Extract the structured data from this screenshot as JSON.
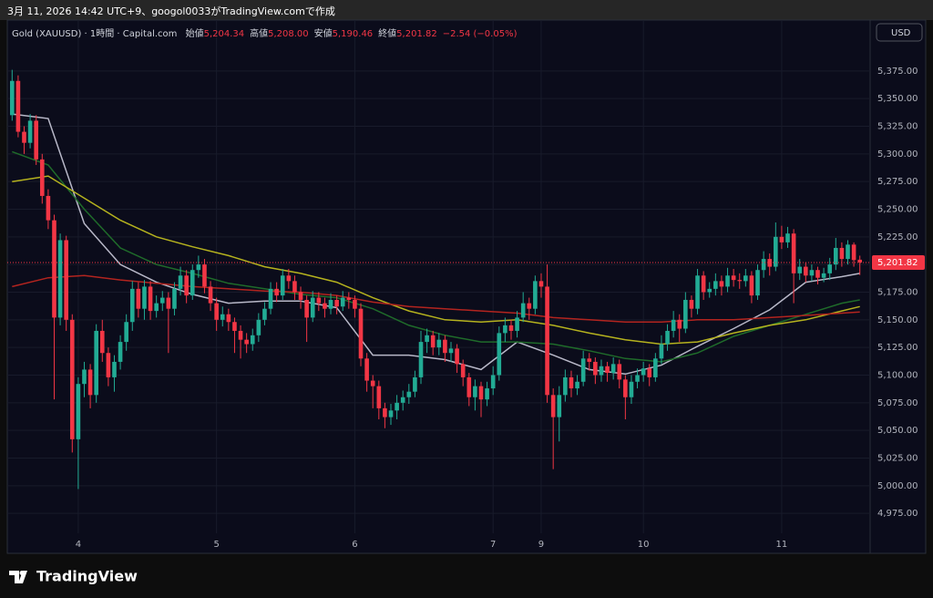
{
  "header": {
    "created": "3月 11, 2026 14:42 UTC+9、googol0033がTradingView.comで作成",
    "symbol": "Gold (XAUUSD) · 1時間 · Capital.com",
    "ohlc": [
      {
        "name": "始値",
        "value": "5,204.34"
      },
      {
        "name": "高値",
        "value": "5,208.00"
      },
      {
        "name": "安値",
        "value": "5,190.46"
      },
      {
        "name": "終値",
        "value": "5,201.82"
      }
    ],
    "change": "−2.54 (−0.05%)",
    "currency": "USD"
  },
  "footer": {
    "brand": "TradingView"
  },
  "chart_data": {
    "type": "candlestick",
    "categories": [
      null,
      null,
      null,
      null,
      null,
      null,
      null,
      null,
      null,
      null,
      null,
      "4",
      null,
      null,
      null,
      null,
      null,
      null,
      null,
      null,
      null,
      null,
      null,
      null,
      null,
      null,
      null,
      null,
      null,
      null,
      null,
      null,
      null,
      null,
      "5",
      null,
      null,
      null,
      null,
      null,
      null,
      null,
      null,
      null,
      null,
      null,
      null,
      null,
      null,
      null,
      null,
      null,
      null,
      null,
      null,
      null,
      null,
      "6",
      null,
      null,
      null,
      null,
      null,
      null,
      null,
      null,
      null,
      null,
      null,
      null,
      null,
      null,
      null,
      null,
      null,
      null,
      null,
      null,
      null,
      null,
      "7",
      null,
      null,
      null,
      null,
      null,
      null,
      null,
      "9",
      null,
      null,
      null,
      null,
      null,
      null,
      null,
      null,
      null,
      null,
      null,
      null,
      null,
      null,
      null,
      null,
      "10",
      null,
      null,
      null,
      null,
      null,
      null,
      null,
      null,
      null,
      null,
      null,
      null,
      null,
      null,
      null,
      null,
      null,
      null,
      null,
      null,
      null,
      null,
      "11",
      null,
      null,
      null,
      null,
      null,
      null,
      null,
      null,
      null,
      null,
      null,
      null,
      null
    ],
    "open": [
      5335,
      5366,
      5320,
      5310,
      5330,
      5295,
      5262,
      5240,
      5152,
      5222,
      5150,
      5042,
      5092,
      5105,
      5082,
      5140,
      5120,
      5098,
      5112,
      5130,
      5148,
      5178,
      5160,
      5180,
      5158,
      5165,
      5170,
      5160,
      5178,
      5190,
      5172,
      5195,
      5200,
      5180,
      5165,
      5150,
      5155,
      5148,
      5140,
      5132,
      5128,
      5136,
      5150,
      5160,
      5178,
      5172,
      5190,
      5185,
      5175,
      5168,
      5152,
      5170,
      5165,
      5160,
      5168,
      5162,
      5170,
      5168,
      5160,
      5115,
      5095,
      5090,
      5070,
      5062,
      5068,
      5075,
      5080,
      5085,
      5098,
      5130,
      5136,
      5125,
      5132,
      5120,
      5124,
      5110,
      5098,
      5080,
      5090,
      5078,
      5088,
      5100,
      5138,
      5145,
      5140,
      5152,
      5165,
      5160,
      5185,
      5180,
      5082,
      5062,
      5082,
      5098,
      5088,
      5094,
      5115,
      5112,
      5100,
      5108,
      5102,
      5110,
      5096,
      5080,
      5094,
      5100,
      5106,
      5098,
      5115,
      5128,
      5140,
      5150,
      5142,
      5168,
      5160,
      5190,
      5175,
      5178,
      5185,
      5180,
      5190,
      5186,
      5185,
      5190,
      5172,
      5195,
      5205,
      5198,
      5225,
      5220,
      5228,
      5192,
      5198,
      5190,
      5195,
      5188,
      5192,
      5200,
      5215,
      5205,
      5218,
      5204.34
    ],
    "high": [
      5376,
      5371,
      5325,
      5336,
      5335,
      5300,
      5268,
      5245,
      5228,
      5226,
      5155,
      5098,
      5112,
      5110,
      5146,
      5150,
      5125,
      5118,
      5136,
      5155,
      5185,
      5184,
      5186,
      5185,
      5172,
      5176,
      5175,
      5184,
      5198,
      5195,
      5200,
      5208,
      5205,
      5185,
      5170,
      5162,
      5160,
      5152,
      5145,
      5138,
      5142,
      5156,
      5166,
      5184,
      5184,
      5196,
      5196,
      5190,
      5180,
      5172,
      5176,
      5175,
      5170,
      5174,
      5172,
      5176,
      5175,
      5172,
      5165,
      5120,
      5100,
      5095,
      5075,
      5074,
      5082,
      5086,
      5092,
      5104,
      5140,
      5142,
      5140,
      5138,
      5136,
      5130,
      5128,
      5114,
      5102,
      5096,
      5094,
      5094,
      5108,
      5144,
      5152,
      5150,
      5158,
      5175,
      5170,
      5190,
      5192,
      5200,
      5088,
      5090,
      5105,
      5104,
      5100,
      5122,
      5120,
      5116,
      5114,
      5112,
      5116,
      5114,
      5100,
      5100,
      5106,
      5112,
      5110,
      5120,
      5136,
      5146,
      5158,
      5155,
      5175,
      5172,
      5196,
      5194,
      5184,
      5192,
      5190,
      5197,
      5196,
      5192,
      5196,
      5194,
      5200,
      5212,
      5210,
      5238,
      5235,
      5234,
      5232,
      5205,
      5202,
      5200,
      5198,
      5197,
      5206,
      5224,
      5220,
      5222,
      5220,
      5208
    ],
    "low": [
      5330,
      5315,
      5300,
      5305,
      5290,
      5255,
      5232,
      5078,
      5145,
      5140,
      5030,
      4997,
      5080,
      5070,
      5075,
      5112,
      5090,
      5085,
      5105,
      5122,
      5140,
      5152,
      5150,
      5150,
      5152,
      5158,
      5120,
      5154,
      5172,
      5165,
      5168,
      5188,
      5174,
      5158,
      5140,
      5144,
      5140,
      5120,
      5115,
      5120,
      5122,
      5130,
      5145,
      5155,
      5166,
      5168,
      5178,
      5168,
      5160,
      5130,
      5148,
      5158,
      5152,
      5155,
      5155,
      5158,
      5160,
      5152,
      5108,
      5085,
      5070,
      5060,
      5052,
      5055,
      5060,
      5068,
      5074,
      5080,
      5092,
      5120,
      5118,
      5118,
      5112,
      5112,
      5102,
      5090,
      5072,
      5068,
      5062,
      5072,
      5082,
      5095,
      5130,
      5132,
      5134,
      5148,
      5150,
      5155,
      5170,
      5075,
      5015,
      5040,
      5076,
      5080,
      5082,
      5090,
      5104,
      5092,
      5094,
      5094,
      5096,
      5088,
      5060,
      5074,
      5088,
      5094,
      5090,
      5094,
      5110,
      5122,
      5134,
      5130,
      5138,
      5152,
      5155,
      5168,
      5170,
      5172,
      5172,
      5175,
      5180,
      5178,
      5180,
      5165,
      5168,
      5188,
      5190,
      5194,
      5214,
      5215,
      5165,
      5186,
      5184,
      5185,
      5182,
      5184,
      5186,
      5195,
      5198,
      5200,
      5198,
      5190.46
    ],
    "close": [
      5366,
      5320,
      5310,
      5330,
      5295,
      5262,
      5240,
      5152,
      5222,
      5150,
      5042,
      5092,
      5105,
      5082,
      5140,
      5120,
      5098,
      5112,
      5130,
      5148,
      5178,
      5160,
      5180,
      5158,
      5165,
      5170,
      5160,
      5178,
      5190,
      5172,
      5195,
      5200,
      5180,
      5165,
      5150,
      5155,
      5148,
      5140,
      5132,
      5128,
      5136,
      5150,
      5160,
      5178,
      5172,
      5190,
      5185,
      5175,
      5168,
      5152,
      5170,
      5165,
      5160,
      5168,
      5162,
      5170,
      5168,
      5160,
      5115,
      5095,
      5090,
      5070,
      5062,
      5068,
      5075,
      5080,
      5085,
      5098,
      5130,
      5136,
      5125,
      5132,
      5120,
      5124,
      5110,
      5098,
      5080,
      5090,
      5078,
      5088,
      5100,
      5138,
      5145,
      5140,
      5152,
      5165,
      5160,
      5185,
      5180,
      5082,
      5062,
      5082,
      5098,
      5088,
      5094,
      5115,
      5112,
      5100,
      5108,
      5102,
      5110,
      5096,
      5080,
      5094,
      5100,
      5106,
      5098,
      5115,
      5128,
      5140,
      5150,
      5142,
      5168,
      5160,
      5190,
      5175,
      5178,
      5185,
      5180,
      5190,
      5186,
      5185,
      5190,
      5172,
      5195,
      5205,
      5198,
      5225,
      5220,
      5228,
      5192,
      5198,
      5190,
      5195,
      5188,
      5192,
      5200,
      5215,
      5205,
      5218,
      5204,
      5201.82
    ],
    "up_color": "#22ab94",
    "down_color": "#f23645",
    "ylim": [
      4957,
      5421
    ],
    "yticks": [
      {
        "value": 4975,
        "label": "4,975.00"
      },
      {
        "value": 5000,
        "label": "5,000.00"
      },
      {
        "value": 5025,
        "label": "5,025.00"
      },
      {
        "value": 5050,
        "label": "5,050.00"
      },
      {
        "value": 5075,
        "label": "5,075.00"
      },
      {
        "value": 5100,
        "label": "5,100.00"
      },
      {
        "value": 5125,
        "label": "5,125.00"
      },
      {
        "value": 5150,
        "label": "5,150.00"
      },
      {
        "value": 5175,
        "label": "5,175.00"
      },
      {
        "value": 5200,
        "label": "5,200.00"
      },
      {
        "value": 5225,
        "label": "5,225.00"
      },
      {
        "value": 5250,
        "label": "5,250.00"
      },
      {
        "value": 5275,
        "label": "5,275.00"
      },
      {
        "value": 5300,
        "label": "5,300.00"
      },
      {
        "value": 5325,
        "label": "5,325.00"
      },
      {
        "value": 5350,
        "label": "5,350.00"
      },
      {
        "value": 5375,
        "label": "5,375.00"
      }
    ],
    "grid": true,
    "ma_x": [
      0,
      6,
      12,
      18,
      24,
      30,
      36,
      42,
      48,
      54,
      60,
      66,
      72,
      78,
      84,
      90,
      96,
      102,
      108,
      114,
      120,
      126,
      132,
      138,
      141
    ],
    "lines": [
      {
        "color": "#b8b8c8",
        "values": [
          5336,
          5332,
          5237,
          5200,
          5184,
          5173,
          5165,
          5167,
          5167,
          5161,
          5118,
          5118,
          5114,
          5105,
          5130,
          5118,
          5105,
          5101,
          5109,
          5126,
          5142,
          5159,
          5184,
          5189,
          5192
        ]
      },
      {
        "color": "#1f6b2a",
        "values": [
          5302,
          5290,
          5250,
          5215,
          5200,
          5192,
          5183,
          5178,
          5173,
          5170,
          5160,
          5145,
          5136,
          5130,
          5130,
          5128,
          5122,
          5115,
          5112,
          5120,
          5135,
          5145,
          5155,
          5165,
          5168
        ]
      },
      {
        "color": "#b5b21e",
        "values": [
          5275,
          5280,
          5260,
          5240,
          5225,
          5216,
          5208,
          5198,
          5192,
          5184,
          5170,
          5158,
          5150,
          5148,
          5150,
          5145,
          5138,
          5132,
          5128,
          5130,
          5138,
          5145,
          5150,
          5158,
          5162
        ]
      },
      {
        "color": "#b3241f",
        "values": [
          5180,
          5188,
          5190,
          5186,
          5183,
          5180,
          5178,
          5176,
          5175,
          5172,
          5166,
          5162,
          5160,
          5158,
          5156,
          5152,
          5150,
          5148,
          5148,
          5150,
          5150,
          5152,
          5154,
          5156,
          5157
        ]
      }
    ],
    "last_price": {
      "value": 5201.82,
      "label": "5,201.82"
    }
  }
}
